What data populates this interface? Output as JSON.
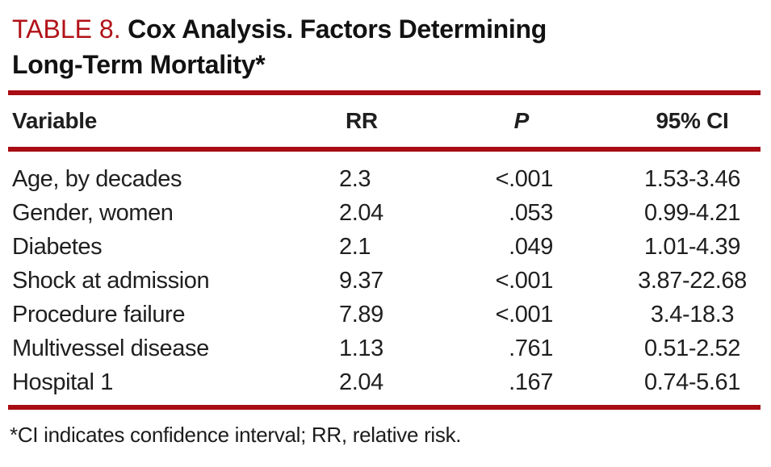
{
  "title": {
    "number": "TABLE 8.",
    "caption_line1": "Cox Analysis. Factors Determining",
    "caption_line2": "Long-Term Mortality*"
  },
  "table": {
    "columns": [
      {
        "key": "variable",
        "label": "Variable",
        "align": "left"
      },
      {
        "key": "rr",
        "label": "RR",
        "align": "left"
      },
      {
        "key": "p",
        "label": "P",
        "align": "right",
        "style": "italic"
      },
      {
        "key": "ci",
        "label": "95% CI",
        "align": "center"
      }
    ],
    "rows": [
      {
        "variable": "Age, by decades",
        "rr": "2.3",
        "p": "<.001",
        "ci": "1.53-3.46"
      },
      {
        "variable": "Gender, women",
        "rr": "2.04",
        "p": ".053",
        "ci": "0.99-4.21"
      },
      {
        "variable": "Diabetes",
        "rr": "2.1",
        "p": ".049",
        "ci": "1.01-4.39"
      },
      {
        "variable": "Shock at admission",
        "rr": "9.37",
        "p": "<.001",
        "ci": "3.87-22.68"
      },
      {
        "variable": "Procedure failure",
        "rr": "7.89",
        "p": "<.001",
        "ci": "3.4-18.3"
      },
      {
        "variable": "Multivessel disease",
        "rr": "1.13",
        "p": ".761",
        "ci": "0.51-2.52"
      },
      {
        "variable": "Hospital 1",
        "rr": "2.04",
        "p": ".167",
        "ci": "0.74-5.61"
      }
    ]
  },
  "footnote": "*CI indicates confidence interval; RR, relative risk.",
  "colors": {
    "rule_red": "#a80d13",
    "title_red": "#b11218",
    "text": "#1f1f1f",
    "background": "#ffffff"
  }
}
